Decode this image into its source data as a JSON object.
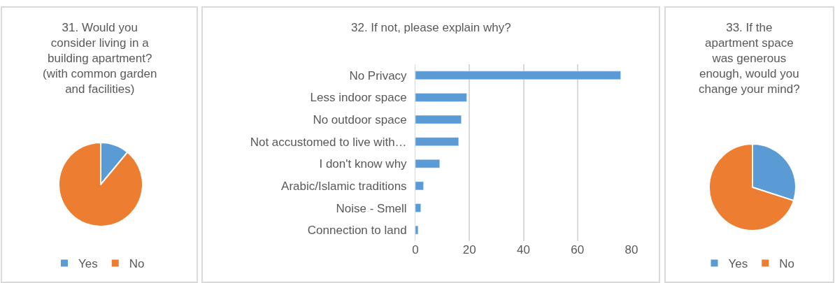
{
  "chart_data": [
    {
      "type": "pie",
      "title": "31. Would you consider living in a building apartment? (with common garden and facilities)",
      "categories": [
        "Yes",
        "No"
      ],
      "values": [
        11,
        89
      ],
      "colors": [
        "#5b9bd5",
        "#ed7d31"
      ],
      "legend": "bottom"
    },
    {
      "type": "bar",
      "orientation": "horizontal",
      "title": "32. If not, please explain why?",
      "categories": [
        "No Privacy",
        "Less indoor space",
        "No outdoor space",
        "Not accustomed to live with…",
        "I don't know why",
        "Arabic/Islamic traditions",
        "Noise - Smell",
        "Connection to land"
      ],
      "values": [
        76,
        19,
        17,
        16,
        9,
        3,
        2,
        1
      ],
      "color": "#5b9bd5",
      "xlim": [
        0,
        80
      ],
      "xticks": [
        0,
        20,
        40,
        60,
        80
      ],
      "grid": "x"
    },
    {
      "type": "pie",
      "title": "33. If the apartment space was generous enough, would you change your mind?",
      "categories": [
        "Yes",
        "No"
      ],
      "values": [
        30,
        70
      ],
      "colors": [
        "#5b9bd5",
        "#ed7d31"
      ],
      "legend": "bottom"
    }
  ]
}
